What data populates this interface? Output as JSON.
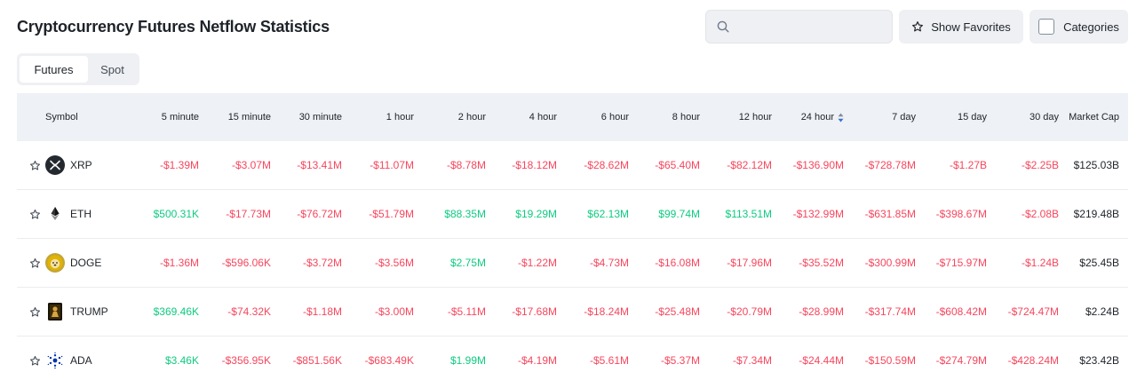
{
  "header": {
    "title": "Cryptocurrency Futures Netflow Statistics"
  },
  "search": {
    "value": "",
    "placeholder": ""
  },
  "buttons": {
    "favorites": "Show Favorites",
    "categories": "Categories"
  },
  "tabs": [
    {
      "label": "Futures",
      "active": true
    },
    {
      "label": "Spot",
      "active": false
    }
  ],
  "table": {
    "columns": [
      "Symbol",
      "5 minute",
      "15 minute",
      "30 minute",
      "1 hour",
      "2 hour",
      "4 hour",
      "6 hour",
      "8 hour",
      "12 hour",
      "24 hour",
      "7 day",
      "15 day",
      "30 day",
      "Market Cap"
    ],
    "sorted_column": "24 hour",
    "rows": [
      {
        "symbol": "XRP",
        "icon": "xrp-icon",
        "values": [
          "-$1.39M",
          "-$3.07M",
          "-$13.41M",
          "-$11.07M",
          "-$8.78M",
          "-$18.12M",
          "-$28.62M",
          "-$65.40M",
          "-$82.12M",
          "-$136.90M",
          "-$728.78M",
          "-$1.27B",
          "-$2.25B"
        ],
        "market_cap": "$125.03B"
      },
      {
        "symbol": "ETH",
        "icon": "eth-icon",
        "values": [
          "$500.31K",
          "-$17.73M",
          "-$76.72M",
          "-$51.79M",
          "$88.35M",
          "$19.29M",
          "$62.13M",
          "$99.74M",
          "$113.51M",
          "-$132.99M",
          "-$631.85M",
          "-$398.67M",
          "-$2.08B"
        ],
        "market_cap": "$219.48B"
      },
      {
        "symbol": "DOGE",
        "icon": "doge-icon",
        "values": [
          "-$1.36M",
          "-$596.06K",
          "-$3.72M",
          "-$3.56M",
          "$2.75M",
          "-$1.22M",
          "-$4.73M",
          "-$16.08M",
          "-$17.96M",
          "-$35.52M",
          "-$300.99M",
          "-$715.97M",
          "-$1.24B"
        ],
        "market_cap": "$25.45B"
      },
      {
        "symbol": "TRUMP",
        "icon": "trump-icon",
        "values": [
          "$369.46K",
          "-$74.32K",
          "-$1.18M",
          "-$3.00M",
          "-$5.11M",
          "-$17.68M",
          "-$18.24M",
          "-$25.48M",
          "-$20.79M",
          "-$28.99M",
          "-$317.74M",
          "-$608.42M",
          "-$724.47M"
        ],
        "market_cap": "$2.24B"
      },
      {
        "symbol": "ADA",
        "icon": "ada-icon",
        "values": [
          "$3.46K",
          "-$356.95K",
          "-$851.56K",
          "-$683.49K",
          "$1.99M",
          "-$4.19M",
          "-$5.61M",
          "-$5.37M",
          "-$7.34M",
          "-$24.44M",
          "-$150.59M",
          "-$274.79M",
          "-$428.24M"
        ],
        "market_cap": "$23.42B"
      }
    ]
  },
  "colors": {
    "negative": "#f6465d",
    "positive": "#0ecb81",
    "header_bg": "#eef1f5",
    "sort_active": "#3b6fd1"
  }
}
